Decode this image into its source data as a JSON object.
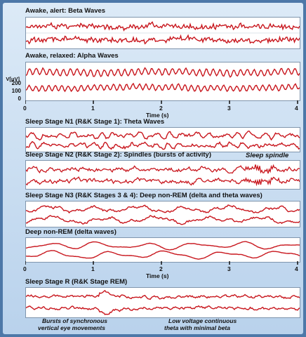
{
  "panels": [
    {
      "id": "beta",
      "label": "Awake, alert: Beta Waves"
    },
    {
      "id": "alpha",
      "label": "Awake, relaxed: Alpha Waves"
    },
    {
      "id": "n1",
      "label": "Sleep Stage N1 (R&K Stage 1): Theta Waves"
    },
    {
      "id": "n2",
      "label": "Sleep Stage N2 (R&K Stage 2): Spindles (bursts of activity)"
    },
    {
      "id": "n3",
      "label": "Sleep Stage N3 (R&K Stages 3 & 4): Deep non-REM (delta and theta waves)"
    },
    {
      "id": "delta",
      "label": "Deep non-REM (delta waves)"
    },
    {
      "id": "rem",
      "label": "Sleep Stage R (R&K Stage REM)"
    }
  ],
  "axis": {
    "y_label": "V[μV]",
    "y_ticks": [
      "200",
      "100",
      "0"
    ],
    "x_ticks": [
      "0",
      "1",
      "2",
      "3",
      "4"
    ],
    "x_label": "Time (s)"
  },
  "annotations": {
    "spindle": "Sleep spindle",
    "eye_line1": "Bursts of synchronous",
    "eye_line2": "vertical eye movements",
    "theta_line1": "Low voltage continuous",
    "theta_line2": "theta with minimal beta"
  },
  "colors": {
    "trace": "#c8161d",
    "frame": "#7f95ad",
    "background_top": "#dceaf7",
    "background_bottom": "#b9d2ec",
    "outer": "#4d78a8"
  }
}
